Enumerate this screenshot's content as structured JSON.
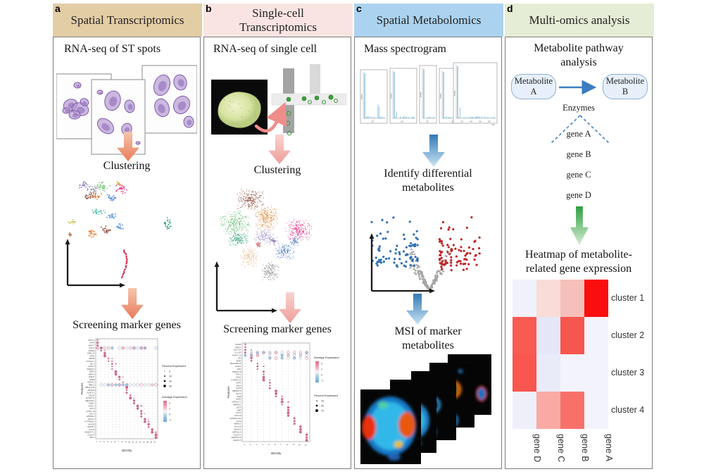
{
  "figure": {
    "panels": [
      {
        "id": "a",
        "letter": "a",
        "header": "Spatial Transcriptomics",
        "header_color": "#e3cda5",
        "step1": "RNA-seq of ST spots",
        "step2": "Clustering",
        "step3": "Screening marker genes",
        "dotplot": {
          "ylabel": "Features",
          "xlabel": "Identity",
          "genes": [
            "SNT3.2",
            "AHP3",
            "AHPY.7",
            "G91+1",
            "SNPE0",
            "NPF2.14",
            "GPA2",
            "HPP09",
            "CWNV1.7",
            "BG.3",
            "ACS1.0",
            "PNES3.5",
            "ERF2",
            "BIPS.4",
            "HAET1",
            "DOB2",
            "WEXS.2",
            "TBR1.2",
            "ABCG11.W",
            "XRF180",
            "ALM72.1",
            "CRLA2",
            "BJTPPY.4",
            "MEVAN4.2",
            "TAB3.2",
            "HAT5.7",
            "ANT.3",
            "AJTP1.10",
            "PAL.2",
            "HPPGB.2",
            "DOX1.2",
            "CYPTBA3.2",
            "AUXOP",
            "ORTIZ.3",
            "TUC10",
            "SHBZT17.2",
            "GNS1.P",
            "BIG.1"
          ],
          "xticks": [
            "1",
            "2",
            "3",
            "4",
            "5",
            "6",
            "7",
            "8",
            "9",
            "10",
            "11",
            "12",
            "13",
            "14",
            "15",
            "16",
            "17"
          ],
          "ring_rows": [
            3,
            17
          ],
          "legend_percent_title": "Percent Expressed",
          "legend_percent_items": [
            "0",
            "20",
            "40",
            "60"
          ],
          "legend_avg_title": "Average Expression",
          "legend_avg_ticks": [
            "2",
            "1",
            "0",
            "-1"
          ],
          "legend_order": "percent_first"
        }
      },
      {
        "id": "b",
        "letter": "b",
        "header_line1": "Single-cell",
        "header_line2": "Transcriptomics",
        "header_color": "#f9e4e1",
        "step1": "RNA-seq of single cell",
        "step2": "Clustering",
        "step3": "Screening marker genes",
        "dotplot": {
          "ylabel": "Features",
          "xlabel": "Identity",
          "genes": [
            "PVA08",
            "AILE.1",
            "DLOT.11",
            "CLLON",
            "MUPT1.12",
            "SIN",
            "ZPR0",
            "BHLH108.14",
            "AUX22",
            "SNO",
            "PER24.10",
            "TIP1-1",
            "ONS1",
            "CYPB7A.12",
            "ANF1",
            "SNL4",
            "FOX5",
            "ABCB15.5",
            "KT0.3",
            "RAB",
            "BUB3",
            "HSP18.2.2",
            "SBPM8.1",
            "LEC3",
            "ABR",
            "CO3.3",
            "STO.23",
            "ALDH0C4.P1",
            "GLT4",
            "XERICO",
            "AmA.10",
            "OLE16.4",
            "ERF011.4",
            "CSLO3.1",
            "ERF105.14",
            "AGP22.P"
          ],
          "xticks": [
            "1",
            "2",
            "3",
            "4",
            "5",
            "6",
            "7",
            "8",
            "9",
            "10",
            "11"
          ],
          "ring_rows": [
            3,
            4,
            5
          ],
          "legend_percent_title": "Percent Expressed",
          "legend_percent_items": [
            "25",
            "50",
            "75"
          ],
          "legend_avg_title": "Average Expression",
          "legend_avg_ticks": [
            "2",
            "1",
            "0",
            "-1"
          ],
          "legend_order": "avg_first"
        }
      },
      {
        "id": "c",
        "letter": "c",
        "header": "Spatial Metabolomics",
        "header_color": "#abd3ef",
        "step1": "Mass spectrogram",
        "step2_line1": "Identify differential",
        "step2_line2": "metabolites",
        "step3_line1": "MSI of marker",
        "step3_line2": "metabolites",
        "spectra": {
          "ylabel": "Intens.",
          "xlabel": "m/z",
          "tick_small": "20",
          "ticks_wide": [
            "20",
            "40",
            "60",
            "80"
          ]
        }
      },
      {
        "id": "d",
        "letter": "d",
        "header": "Multi-omics analysis",
        "header_color": "#e5edd6",
        "pathway_title_1": "Metabolite pathway",
        "pathway_title_2": "analysis",
        "node_a_line1": "Metabolite",
        "node_a_line2": "A",
        "node_b_line1": "Metabolite",
        "node_b_line2": "B",
        "enzymes": "Enzymes",
        "genes": [
          "gene A",
          "gene B",
          "gene C",
          "gene D"
        ],
        "heatmap_title_1": "Heatmap of metabolite-",
        "heatmap_title_2": "related gene expression",
        "heatmap": {
          "columns": [
            "gene D",
            "gene C",
            "gene B",
            "gene A"
          ],
          "rows": [
            "cluster 1",
            "cluster 2",
            "cluster 3",
            "cluster 4"
          ],
          "colors": [
            [
              "#f1f1fb",
              "#f9dcd7",
              "#f6c0ba",
              "#fb0e0e"
            ],
            [
              "#f85b52",
              "#e4e7f7",
              "#f7564e",
              "#f3f3fb"
            ],
            [
              "#f8564e",
              "#e9ebf8",
              "#f3f3fb",
              "#f3f3fb"
            ],
            [
              "#efeffa",
              "#f9aaa4",
              "#f7716a",
              "#f3f3fb"
            ]
          ]
        }
      }
    ]
  },
  "viz": {
    "arrow_a": [
      "#f4c5ac",
      "#e87c5a"
    ],
    "arrow_b": [
      "#f8d3d0",
      "#ef9d99"
    ],
    "arrow_c": [
      "#3579b5",
      "#c9e4f4"
    ],
    "arrow_d": [
      "#2f9e3f",
      "#d6eed6"
    ],
    "pathway_arrow": "#3c7cc0",
    "dashed_line": "#4a86c8",
    "dot_pink": "#c65b7e",
    "dot_blue": "#a9c6e2",
    "ring_gray": "#9ab0c4",
    "volcano": {
      "up": "#bf2626",
      "down": "#2e6fb5",
      "ns": "#a5a5a5"
    },
    "spectrum_peak": "#6fb0d4",
    "histology_fill": "#b193cf",
    "histology_stroke": "#7d5aa8",
    "cell_green": "#3c9e3c",
    "avg_gradient": [
      "#e06a8c",
      "#f2bcca",
      "#f7f7f7",
      "#aecfe8",
      "#6aa6d6"
    ],
    "umap_a": [
      [
        "#9aa0a8",
        52,
        22,
        13,
        9,
        34
      ],
      [
        "#8878b8",
        40,
        14,
        8,
        6,
        20
      ],
      [
        "#7bc47f",
        66,
        16,
        11,
        8,
        30
      ],
      [
        "#e8327f",
        93,
        20,
        9,
        8,
        26
      ],
      [
        "#e07b2e",
        57,
        30,
        9,
        6,
        22
      ],
      [
        "#4a7fd4",
        80,
        32,
        8,
        6,
        20
      ],
      [
        "#8a5040",
        46,
        30,
        7,
        5,
        16
      ],
      [
        "#e8a030",
        88,
        12,
        6,
        4,
        12
      ],
      [
        "#45b8a0",
        60,
        52,
        10,
        5,
        20
      ],
      [
        "#4a90d8",
        78,
        58,
        8,
        5,
        16
      ],
      [
        "#c8b830",
        22,
        66,
        6,
        4,
        12
      ],
      [
        "#e07b2e",
        50,
        82,
        9,
        7,
        22
      ],
      [
        "#8a3a2a",
        70,
        78,
        8,
        6,
        18
      ],
      [
        "#4a7fd4",
        90,
        74,
        7,
        5,
        14
      ],
      [
        "#b05828",
        20,
        84,
        3,
        3,
        6
      ],
      [
        "#2e9e78",
        158,
        68,
        6,
        9,
        24
      ]
    ],
    "umap_a_streak": "#d42040",
    "umap_b": [
      [
        "#8a4a38",
        62,
        28,
        20,
        16,
        260
      ],
      [
        "#d8812e",
        85,
        55,
        17,
        18,
        260
      ],
      [
        "#5cb86a",
        40,
        62,
        22,
        18,
        280
      ],
      [
        "#2e9e77",
        44,
        84,
        15,
        10,
        160
      ],
      [
        "#b0a0d0",
        80,
        80,
        15,
        12,
        180
      ],
      [
        "#e82e8a",
        130,
        72,
        20,
        16,
        260
      ],
      [
        "#5a80c0",
        110,
        102,
        15,
        12,
        170
      ],
      [
        "#8a8a8a",
        90,
        130,
        13,
        14,
        170
      ],
      [
        "#e8b888",
        60,
        110,
        13,
        16,
        170
      ],
      [
        "#c83038",
        73,
        92,
        4,
        5,
        30
      ],
      [
        "#6a4a9a",
        95,
        88,
        7,
        6,
        40
      ],
      [
        "#3868b0",
        125,
        88,
        8,
        6,
        50
      ]
    ]
  }
}
